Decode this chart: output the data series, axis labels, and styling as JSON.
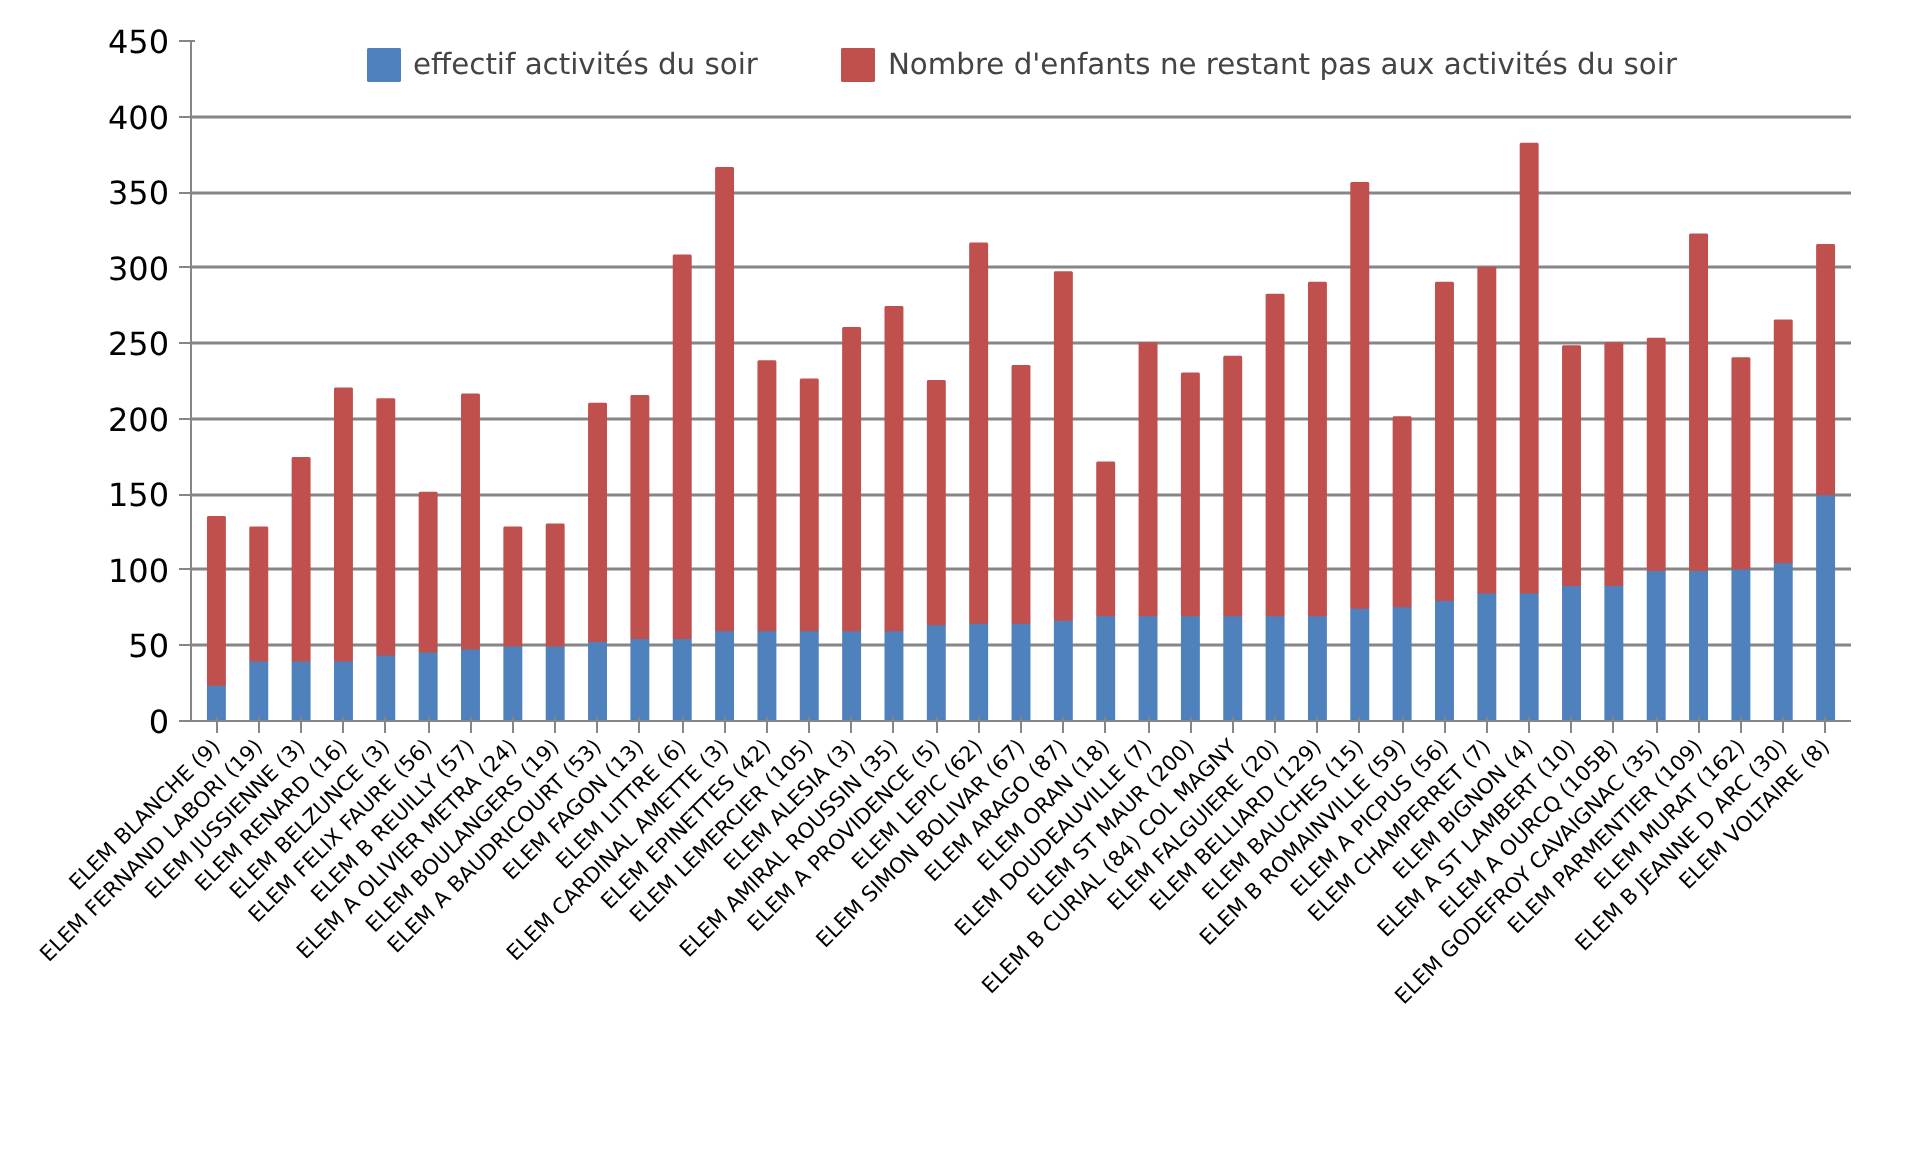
{
  "chart_data": {
    "type": "bar",
    "stacked": true,
    "categories": [
      "ELEM BLANCHE (9)",
      "ELEM FERNAND LABORI (19)",
      "ELEM JUSSIENNE (3)",
      "ELEM RENARD (16)",
      "ELEM BELZUNCE (3)",
      "ELEM FELIX FAURE (56)",
      "ELEM B REUILLY (57)",
      "ELEM A OLIVIER METRA (24)",
      "ELEM BOULANGERS (19)",
      "ELEM A BAUDRICOURT (53)",
      "ELEM FAGON (13)",
      "ELEM LITTRE (6)",
      "ELEM CARDINAL AMETTE (3)",
      "ELEM EPINETTES (42)",
      "ELEM LEMERCIER (105)",
      "ELEM ALESIA (3)",
      "ELEM AMIRAL ROUSSIN (35)",
      "ELEM A PROVIDENCE (5)",
      "ELEM LEPIC (62)",
      "ELEM SIMON BOLIVAR (67)",
      "ELEM ARAGO (87)",
      "ELEM ORAN (18)",
      "ELEM DOUDEAUVILLE (7)",
      "ELEM ST MAUR (200)",
      "ELEM B CURIAL (84) COL MAGNY",
      "ELEM FALGUIERE (20)",
      "ELEM BELLIARD (129)",
      "ELEM BAUCHES (15)",
      "ELEM B ROMAINVILLE (59)",
      "ELEM A PICPUS (56)",
      "ELEM CHAMPERRET (7)",
      "ELEM BIGNON (4)",
      "ELEM A ST LAMBERT (10)",
      "ELEM A OURCQ (105B)",
      "ELEM GODEFROY CAVAIGNAC (35)",
      "ELEM PARMENTIER (109)",
      "ELEM MURAT (162)",
      "ELEM B JEANNE D ARC (30)",
      "ELEM VOLTAIRE (8)"
    ],
    "series": [
      {
        "name": "effectif activités du soir",
        "color": "#4f81bd",
        "values": [
          24,
          40,
          40,
          40,
          44,
          46,
          48,
          50,
          50,
          53,
          55,
          55,
          60,
          60,
          60,
          60,
          60,
          64,
          65,
          65,
          67,
          70,
          70,
          70,
          70,
          70,
          70,
          75,
          76,
          80,
          85,
          85,
          90,
          90,
          100,
          100,
          101,
          105,
          150
        ]
      },
      {
        "name": "Nombre d'enfants ne restant pas aux activités du soir",
        "color": "#c0504d",
        "values": [
          111,
          88,
          134,
          180,
          169,
          105,
          168,
          78,
          80,
          157,
          160,
          253,
          306,
          178,
          166,
          200,
          214,
          161,
          251,
          170,
          230,
          101,
          180,
          160,
          171,
          212,
          220,
          281,
          125,
          210,
          215,
          297,
          158,
          160,
          153,
          222,
          139,
          160,
          165
        ]
      }
    ],
    "ylim": [
      0,
      450
    ],
    "yticks": [
      0,
      50,
      100,
      150,
      200,
      250,
      300,
      350,
      400,
      450
    ],
    "grid": "y",
    "legend": "top"
  }
}
